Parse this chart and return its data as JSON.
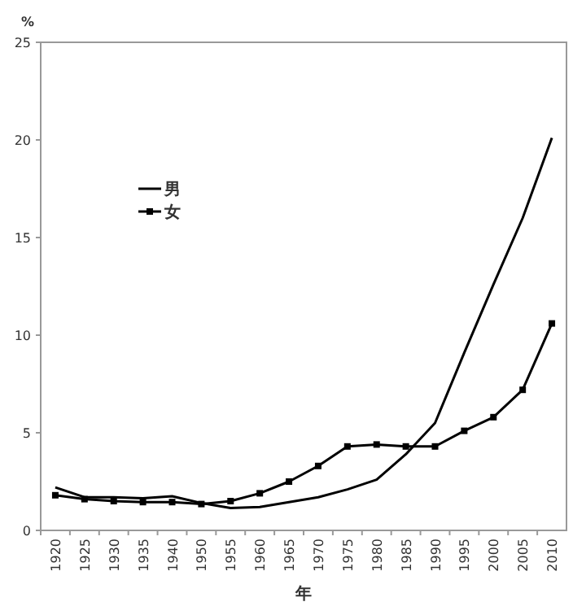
{
  "chart_data": {
    "type": "line",
    "ylabel": "%",
    "xlabel": "年",
    "categories": [
      "1920",
      "1925",
      "1930",
      "1935",
      "1940",
      "1950",
      "1955",
      "1960",
      "1965",
      "1970",
      "1975",
      "1980",
      "1985",
      "1990",
      "1995",
      "2000",
      "2005",
      "2010"
    ],
    "series": [
      {
        "name": "男",
        "color": "#000000",
        "marker": "none",
        "values": [
          2.2,
          1.7,
          1.7,
          1.65,
          1.75,
          1.4,
          1.15,
          1.2,
          1.45,
          1.7,
          2.1,
          2.6,
          3.9,
          5.5,
          9.1,
          12.6,
          16.0,
          20.1
        ]
      },
      {
        "name": "女",
        "color": "#000000",
        "marker": "square",
        "values": [
          1.8,
          1.6,
          1.5,
          1.45,
          1.45,
          1.35,
          1.5,
          1.9,
          2.5,
          3.3,
          4.3,
          4.4,
          4.3,
          4.3,
          5.1,
          5.8,
          7.2,
          10.6
        ]
      }
    ],
    "ylim": [
      0,
      25
    ],
    "yticks": [
      0,
      5,
      10,
      15,
      20,
      25
    ],
    "grid": false,
    "legend": "top left",
    "line_style": "solid"
  }
}
